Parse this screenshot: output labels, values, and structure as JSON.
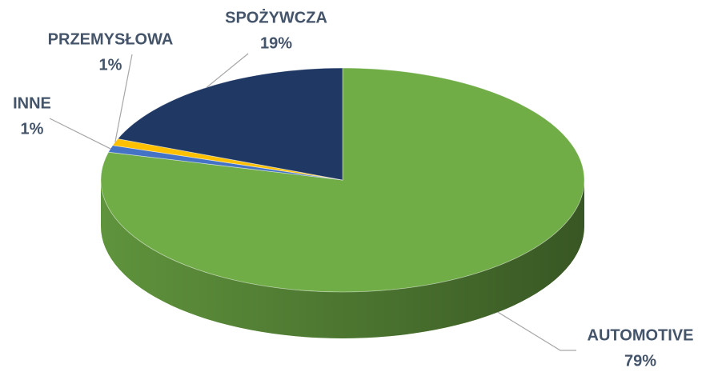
{
  "chart_data": {
    "type": "pie3d",
    "categories": [
      "AUTOMOTIVE",
      "INNE",
      "PRZEMYSŁOWA",
      "SPOŻYWCZA"
    ],
    "values": [
      79,
      1,
      1,
      19
    ],
    "value_labels": [
      "79%",
      "1%",
      "1%",
      "19%"
    ],
    "colors": [
      "#70ad47",
      "#4472c4",
      "#ffc000",
      "#203864"
    ]
  }
}
